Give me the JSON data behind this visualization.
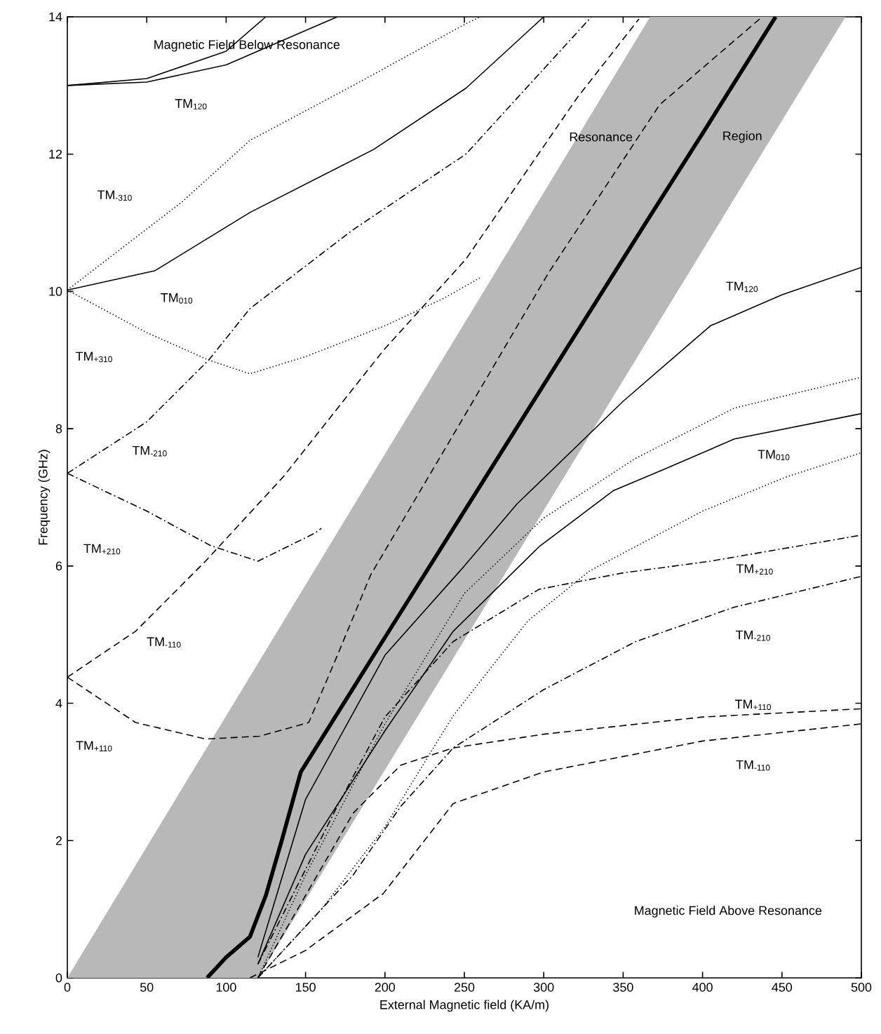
{
  "chart_data": {
    "type": "line",
    "xlabel": "External Magnetic field   (KA/m)",
    "ylabel": "Frequency  (GHz)",
    "xlim": [
      0,
      500
    ],
    "ylim": [
      0,
      14
    ],
    "xticks": [
      0,
      50,
      100,
      150,
      200,
      250,
      300,
      350,
      400,
      450,
      500
    ],
    "yticks": [
      0,
      2,
      4,
      6,
      8,
      10,
      12,
      14
    ],
    "marker": "none",
    "series": [
      {
        "color": "#000000",
        "x": [
          0,
          120,
          200,
          300,
          367,
          490
        ],
        "values": [
          null,
          null,
          null,
          null,
          null,
          null
        ],
        "upper": [
          0,
          4.58,
          7.63,
          11.44,
          14,
          14
        ],
        "lower": [
          0,
          0,
          3.03,
          6.81,
          9.35,
          14
        ]
      },
      {
        "color": "#000000",
        "line_style": "solid",
        "x": [
          88,
          100,
          115,
          125,
          135,
          147,
          200,
          250,
          300,
          367,
          400,
          446
        ],
        "values": [
          0,
          0.3,
          0.6,
          1.2,
          2.0,
          3.0,
          4.96,
          6.8,
          8.64,
          11.1,
          12.3,
          14
        ]
      },
      {
        "color": "#000000",
        "line_style": "solid",
        "x": [
          0,
          50,
          100,
          125
        ],
        "values": [
          13,
          13.1,
          13.5,
          14
        ]
      },
      {
        "color": "#000000",
        "line_style": "solid",
        "x": [
          0,
          50,
          100,
          150,
          170
        ],
        "values": [
          13,
          13.05,
          13.3,
          13.8,
          14
        ]
      },
      {
        "color": "#000000",
        "line_style": "solid",
        "x": [
          0,
          55,
          115,
          193,
          251,
          300
        ],
        "values": [
          10.02,
          10.3,
          11.15,
          12.07,
          12.96,
          14
        ]
      },
      {
        "color": "#000000",
        "line_style": "dotted",
        "x": [
          0,
          72,
          115,
          180,
          251,
          260
        ],
        "values": [
          10.02,
          11.3,
          12.2,
          13.0,
          13.9,
          14
        ]
      },
      {
        "color": "#000000",
        "line_style": "dotted",
        "x": [
          0,
          50,
          89,
          115,
          150,
          200,
          237,
          260
        ],
        "values": [
          10.02,
          9.4,
          9.0,
          8.8,
          9.05,
          9.5,
          9.9,
          10.2
        ]
      },
      {
        "color": "#000000",
        "line_style": "dashdot",
        "x": [
          0,
          50,
          89,
          115,
          180,
          251,
          330
        ],
        "values": [
          7.35,
          8.1,
          9.0,
          9.75,
          10.9,
          12.0,
          14
        ]
      },
      {
        "color": "#000000",
        "line_style": "dashdot",
        "x": [
          0,
          50,
          90,
          120,
          156,
          160
        ],
        "values": [
          7.35,
          6.8,
          6.3,
          6.07,
          6.48,
          6.55
        ]
      },
      {
        "color": "#000000",
        "line_style": "dashed",
        "x": [
          0,
          43,
          87,
          136,
          199,
          251,
          321,
          360
        ],
        "values": [
          4.38,
          5.05,
          6.07,
          7.3,
          9.14,
          10.47,
          12.82,
          13.97
        ]
      },
      {
        "color": "#000000",
        "line_style": "dashed",
        "x": [
          0,
          43,
          87,
          121,
          152,
          169,
          191,
          243,
          303,
          373,
          436
        ],
        "values": [
          4.38,
          3.72,
          3.48,
          3.52,
          3.72,
          4.64,
          5.87,
          7.91,
          10.27,
          12.72,
          13.97
        ]
      },
      {
        "color": "#000000",
        "line_style": "solid",
        "x": [
          120,
          150,
          200,
          250,
          283,
          350,
          405,
          450,
          500
        ],
        "values": [
          0.3,
          2.6,
          4.7,
          6.0,
          6.9,
          8.4,
          9.5,
          9.95,
          10.35
        ]
      },
      {
        "color": "#000000",
        "line_style": "solid",
        "x": [
          120,
          150,
          200,
          243,
          297,
          344,
          375,
          420,
          500
        ],
        "values": [
          0.2,
          1.8,
          3.6,
          5.05,
          6.28,
          7.1,
          7.4,
          7.85,
          8.22
        ]
      },
      {
        "color": "#000000",
        "line_style": "dotted",
        "x": [
          120,
          150,
          200,
          250,
          300,
          358,
          420,
          500
        ],
        "values": [
          0,
          1.5,
          3.7,
          5.6,
          6.7,
          7.57,
          8.3,
          8.75
        ]
      },
      {
        "color": "#000000",
        "line_style": "dotted",
        "x": [
          120,
          160,
          200,
          243,
          290,
          329,
          400,
          453,
          500
        ],
        "values": [
          0,
          1.0,
          2.2,
          3.82,
          5.2,
          5.93,
          6.8,
          7.3,
          7.65
        ]
      },
      {
        "color": "#000000",
        "line_style": "dashdot",
        "x": [
          120,
          170,
          200,
          243,
          297,
          350,
          405,
          500
        ],
        "values": [
          0.2,
          2.5,
          3.8,
          4.9,
          5.66,
          5.9,
          6.07,
          6.45
        ]
      },
      {
        "color": "#000000",
        "line_style": "dashdot",
        "x": [
          120,
          180,
          210,
          243,
          300,
          358,
          420,
          500
        ],
        "values": [
          0,
          1.5,
          2.5,
          3.35,
          4.2,
          4.9,
          5.4,
          5.85
        ]
      },
      {
        "color": "#000000",
        "line_style": "dashed",
        "x": [
          120,
          150,
          180,
          210,
          243,
          300,
          400,
          500
        ],
        "values": [
          0,
          1.2,
          2.4,
          3.1,
          3.35,
          3.55,
          3.8,
          3.92
        ]
      },
      {
        "color": "#000000",
        "line_style": "dashed",
        "x": [
          115,
          150,
          199,
          243,
          300,
          400,
          500
        ],
        "values": [
          0,
          0.4,
          1.23,
          2.54,
          3.0,
          3.45,
          3.7
        ]
      }
    ],
    "annotations": [
      "Magnetic Field Below Resonance",
      "TM$_{120}$",
      "TM$_{-310}$",
      "TM$_{010}$",
      "TM$_{+310}$",
      "TM$_{-210}$",
      "TM$_{+210}$",
      "TM$_{-110}$",
      "TM$_{+110}$",
      "Resonance",
      "Region",
      "TM$_{120}$",
      "TM$_{010}$",
      "TM$_{+210}$",
      "TM$_{-210}$",
      "TM$_{+110}$",
      "TM$_{-110}$",
      "Magnetic Field Above Resonance"
    ]
  }
}
